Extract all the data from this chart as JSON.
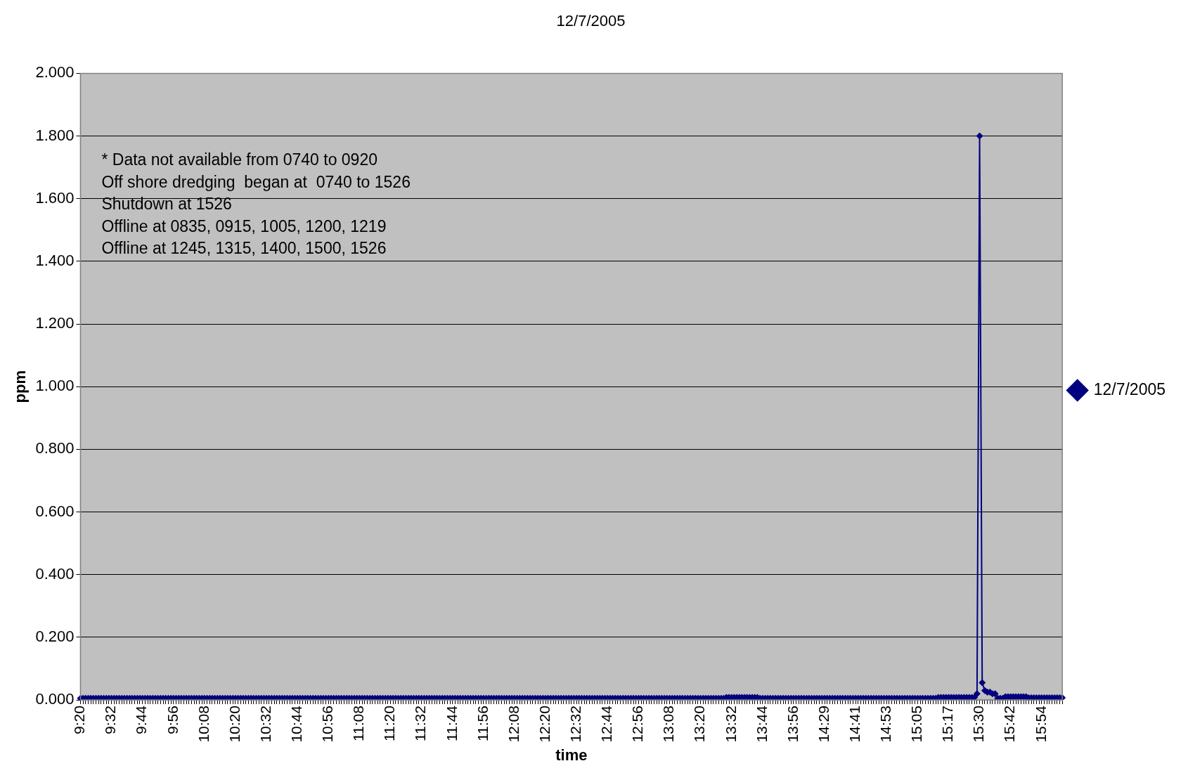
{
  "chart_data": {
    "type": "line",
    "title": "12/7/2005",
    "xlabel": "time",
    "ylabel": "ppm",
    "annotations": [
      "* Data not available from 0740 to 0920",
      "Off shore dredging  began at  0740 to 1526",
      "Shutdown at 1526",
      "Offline at 0835, 0915, 1005, 1200, 1219",
      "Offline at 1245, 1315, 1400, 1500, 1526"
    ],
    "categories": [
      "9:20",
      null,
      null,
      null,
      null,
      null,
      null,
      null,
      null,
      null,
      null,
      null,
      "9:32",
      null,
      null,
      null,
      null,
      null,
      null,
      null,
      null,
      null,
      null,
      null,
      "9:44",
      null,
      null,
      null,
      null,
      null,
      null,
      null,
      null,
      null,
      null,
      null,
      "9:56",
      null,
      null,
      null,
      null,
      null,
      null,
      null,
      null,
      null,
      null,
      null,
      "10:08",
      null,
      null,
      null,
      null,
      null,
      null,
      null,
      null,
      null,
      null,
      null,
      "10:20",
      null,
      null,
      null,
      null,
      null,
      null,
      null,
      null,
      null,
      null,
      null,
      "10:32",
      null,
      null,
      null,
      null,
      null,
      null,
      null,
      null,
      null,
      null,
      null,
      "10:44",
      null,
      null,
      null,
      null,
      null,
      null,
      null,
      null,
      null,
      null,
      null,
      "10:56",
      null,
      null,
      null,
      null,
      null,
      null,
      null,
      null,
      null,
      null,
      null,
      "11:08",
      null,
      null,
      null,
      null,
      null,
      null,
      null,
      null,
      null,
      null,
      null,
      "11:20",
      null,
      null,
      null,
      null,
      null,
      null,
      null,
      null,
      null,
      null,
      null,
      "11:32",
      null,
      null,
      null,
      null,
      null,
      null,
      null,
      null,
      null,
      null,
      null,
      "11:44",
      null,
      null,
      null,
      null,
      null,
      null,
      null,
      null,
      null,
      null,
      null,
      "11:56",
      null,
      null,
      null,
      null,
      null,
      null,
      null,
      null,
      null,
      null,
      null,
      "12:08",
      null,
      null,
      null,
      null,
      null,
      null,
      null,
      null,
      null,
      null,
      null,
      "12:20",
      null,
      null,
      null,
      null,
      null,
      null,
      null,
      null,
      null,
      null,
      null,
      "12:32",
      null,
      null,
      null,
      null,
      null,
      null,
      null,
      null,
      null,
      null,
      null,
      "12:44",
      null,
      null,
      null,
      null,
      null,
      null,
      null,
      null,
      null,
      null,
      null,
      "12:56",
      null,
      null,
      null,
      null,
      null,
      null,
      null,
      null,
      null,
      null,
      null,
      "13:08",
      null,
      null,
      null,
      null,
      null,
      null,
      null,
      null,
      null,
      null,
      null,
      "13:20",
      null,
      null,
      null,
      null,
      null,
      null,
      null,
      null,
      null,
      null,
      null,
      "13:32",
      null,
      null,
      null,
      null,
      null,
      null,
      null,
      null,
      null,
      null,
      null,
      "13:44",
      null,
      null,
      null,
      null,
      null,
      null,
      null,
      null,
      null,
      null,
      null,
      "13:56",
      null,
      null,
      null,
      null,
      null,
      null,
      null,
      null,
      null,
      null,
      null,
      "14:29",
      null,
      null,
      null,
      null,
      null,
      null,
      null,
      null,
      null,
      null,
      null,
      "14:41",
      null,
      null,
      null,
      null,
      null,
      null,
      null,
      null,
      null,
      null,
      null,
      "14:53",
      null,
      null,
      null,
      null,
      null,
      null,
      null,
      null,
      null,
      null,
      null,
      "15:05",
      null,
      null,
      null,
      null,
      null,
      null,
      null,
      null,
      null,
      null,
      null,
      "15:17",
      null,
      null,
      null,
      null,
      null,
      null,
      null,
      null,
      null,
      null,
      null,
      "15:30",
      null,
      null,
      null,
      null,
      null,
      null,
      null,
      null,
      null,
      null,
      null,
      "15:42",
      null,
      null,
      null,
      null,
      null,
      null,
      null,
      null,
      null,
      null,
      null,
      "15:54",
      null,
      null,
      null,
      null,
      null,
      null,
      null,
      null
    ],
    "series": [
      {
        "name": "12/7/2005",
        "color": "#000080",
        "values": [
          0.005,
          0.005,
          0.005,
          0.005,
          0.005,
          0.005,
          0.005,
          0.005,
          0.005,
          0.005,
          0.005,
          0.005,
          0.005,
          0.005,
          0.005,
          0.005,
          0.005,
          0.005,
          0.005,
          0.005,
          0.005,
          0.005,
          0.005,
          0.005,
          0.005,
          0.005,
          0.005,
          0.005,
          0.005,
          0.005,
          0.005,
          0.005,
          0.005,
          0.005,
          0.005,
          0.005,
          0.005,
          0.005,
          0.005,
          0.005,
          0.005,
          0.005,
          0.005,
          0.005,
          0.005,
          0.005,
          0.005,
          0.005,
          0.005,
          0.005,
          0.005,
          0.005,
          0.005,
          0.005,
          0.005,
          0.005,
          0.005,
          0.005,
          0.005,
          0.005,
          0.005,
          0.005,
          0.005,
          0.005,
          0.005,
          0.005,
          0.005,
          0.005,
          0.005,
          0.005,
          0.005,
          0.005,
          0.005,
          0.005,
          0.005,
          0.005,
          0.005,
          0.005,
          0.005,
          0.005,
          0.005,
          0.005,
          0.005,
          0.005,
          0.005,
          0.005,
          0.005,
          0.005,
          0.005,
          0.005,
          0.005,
          0.005,
          0.005,
          0.005,
          0.005,
          0.005,
          0.005,
          0.005,
          0.005,
          0.005,
          0.005,
          0.005,
          0.005,
          0.005,
          0.005,
          0.005,
          0.005,
          0.005,
          0.005,
          0.005,
          0.005,
          0.005,
          0.005,
          0.005,
          0.005,
          0.005,
          0.005,
          0.005,
          0.005,
          0.005,
          0.005,
          0.005,
          0.005,
          0.005,
          0.005,
          0.005,
          0.005,
          0.005,
          0.005,
          0.005,
          0.005,
          0.005,
          0.005,
          0.005,
          0.005,
          0.005,
          0.005,
          0.005,
          0.005,
          0.005,
          0.005,
          0.005,
          0.005,
          0.005,
          0.005,
          0.005,
          0.005,
          0.005,
          0.005,
          0.005,
          0.005,
          0.005,
          0.005,
          0.005,
          0.005,
          0.005,
          0.005,
          0.005,
          0.005,
          0.005,
          0.005,
          0.005,
          0.005,
          0.005,
          0.005,
          0.005,
          0.005,
          0.005,
          0.005,
          0.005,
          0.005,
          0.005,
          0.005,
          0.005,
          0.005,
          0.005,
          0.005,
          0.005,
          0.005,
          0.005,
          0.005,
          0.005,
          0.005,
          0.005,
          0.005,
          0.005,
          0.005,
          0.005,
          0.005,
          0.005,
          0.005,
          0.005,
          0.005,
          0.005,
          0.005,
          0.005,
          0.005,
          0.005,
          0.005,
          0.005,
          0.005,
          0.005,
          0.005,
          0.005,
          0.005,
          0.005,
          0.005,
          0.005,
          0.005,
          0.005,
          0.005,
          0.005,
          0.005,
          0.005,
          0.005,
          0.005,
          0.005,
          0.005,
          0.005,
          0.005,
          0.005,
          0.005,
          0.005,
          0.005,
          0.005,
          0.005,
          0.005,
          0.005,
          0.005,
          0.005,
          0.005,
          0.005,
          0.005,
          0.005,
          0.005,
          0.005,
          0.005,
          0.005,
          0.005,
          0.005,
          0.005,
          0.005,
          0.005,
          0.005,
          0.005,
          0.005,
          0.005,
          0.005,
          0.005,
          0.005,
          0.008,
          0.008,
          0.008,
          0.008,
          0.008,
          0.008,
          0.008,
          0.008,
          0.008,
          0.008,
          0.008,
          0.008,
          0.008,
          0.005,
          0.005,
          0.005,
          0.005,
          0.005,
          0.005,
          0.005,
          0.005,
          0.005,
          0.005,
          0.005,
          0.005,
          0.005,
          0.005,
          0.005,
          0.005,
          0.005,
          0.005,
          0.005,
          0.005,
          0.005,
          0.005,
          0.005,
          0.005,
          0.005,
          0.005,
          0.005,
          0.005,
          0.005,
          0.005,
          0.005,
          0.005,
          0.005,
          0.005,
          0.005,
          0.005,
          0.005,
          0.005,
          0.005,
          0.005,
          0.005,
          0.005,
          0.005,
          0.005,
          0.005,
          0.005,
          0.005,
          0.005,
          0.005,
          0.005,
          0.005,
          0.005,
          0.005,
          0.005,
          0.005,
          0.005,
          0.005,
          0.005,
          0.005,
          0.005,
          0.005,
          0.005,
          0.005,
          0.005,
          0.005,
          0.005,
          0.005,
          0.005,
          0.005,
          0.008,
          0.008,
          0.008,
          0.008,
          0.008,
          0.008,
          0.008,
          0.008,
          0.008,
          0.008,
          0.008,
          0.008,
          0.008,
          0.008,
          0.008,
          0.02,
          1.8,
          0.055,
          0.03,
          0.025,
          0.025,
          0.02,
          0.02,
          0.005,
          0.005,
          0.005,
          0.01,
          0.01,
          0.01,
          0.01,
          0.01,
          0.01,
          0.01,
          0.01,
          0.01,
          0.007,
          0.007,
          0.007,
          0.007,
          0.007,
          0.007,
          0.007,
          0.007,
          0.007,
          0.007,
          0.007,
          0.007,
          0.007,
          0.007
        ]
      }
    ],
    "ylim": [
      0,
      2
    ],
    "yticks": [
      {
        "value": 0,
        "label": "0.000"
      },
      {
        "value": 0.2,
        "label": "0.200"
      },
      {
        "value": 0.4,
        "label": "0.400"
      },
      {
        "value": 0.6,
        "label": "0.600"
      },
      {
        "value": 0.8,
        "label": "0.800"
      },
      {
        "value": 1,
        "label": "1.000"
      },
      {
        "value": 1.2,
        "label": "1.200"
      },
      {
        "value": 1.4,
        "label": "1.400"
      },
      {
        "value": 1.6,
        "label": "1.600"
      },
      {
        "value": 1.8,
        "label": "1.800"
      },
      {
        "value": 2,
        "label": "2.000"
      }
    ],
    "grid": "y",
    "legend": "right",
    "marker": "diamond",
    "line_style": "solid"
  }
}
